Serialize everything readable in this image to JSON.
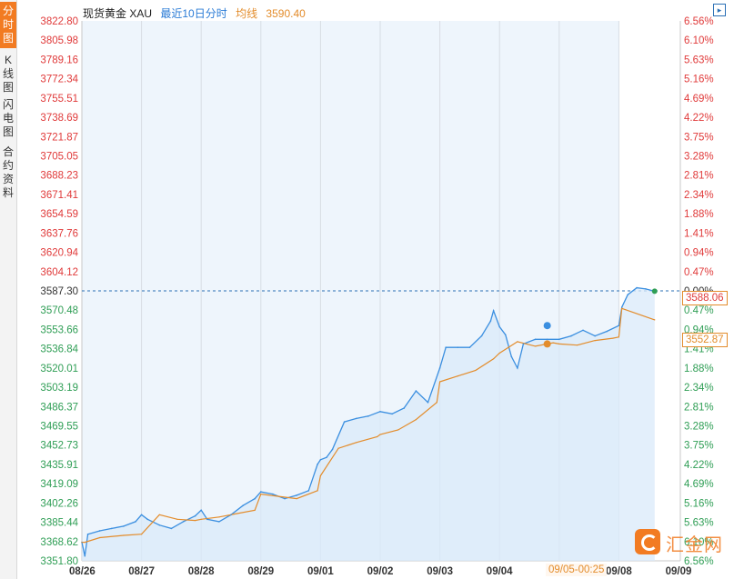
{
  "sidebar": {
    "tabs": [
      {
        "label": "分时图",
        "active": true
      },
      {
        "label": "K线图",
        "active": false
      },
      {
        "label": "闪电图",
        "active": false
      },
      {
        "label": "合约资料",
        "active": false
      }
    ]
  },
  "header": {
    "name": "现货黄金 XAU",
    "period": "最近10日分时",
    "avg_label": "均线",
    "avg_value": "3590.40"
  },
  "badges": {
    "current_price": "3588.06",
    "avg_price": "3552.87",
    "crosshair_time": "09/05-00:25"
  },
  "logo": {
    "text": "汇金网"
  },
  "colors": {
    "price": "#3b8fe0",
    "avg": "#e38c2b",
    "up": "#e03a3a",
    "down": "#2f9e55",
    "fill": "#d9e9fa"
  },
  "chart_data": {
    "type": "line",
    "title": "现货黄金 XAU",
    "xlabel": "",
    "ylabel": "",
    "ylim": [
      3351.8,
      3822.8
    ],
    "prev_close": 3587.3,
    "y_ticks": [
      "3822.80",
      "3805.98",
      "3789.16",
      "3772.34",
      "3755.51",
      "3738.69",
      "3721.87",
      "3705.05",
      "3688.23",
      "3671.41",
      "3654.59",
      "3637.76",
      "3620.94",
      "3604.12",
      "3587.30",
      "3570.48",
      "3553.66",
      "3536.84",
      "3520.01",
      "3503.19",
      "3486.37",
      "3469.55",
      "3452.73",
      "3435.91",
      "3419.09",
      "3402.26",
      "3385.44",
      "3368.62",
      "3351.80"
    ],
    "pct_ticks": [
      "6.56%",
      "6.10%",
      "5.63%",
      "5.16%",
      "4.69%",
      "4.22%",
      "3.75%",
      "3.28%",
      "2.81%",
      "2.34%",
      "1.88%",
      "1.41%",
      "0.94%",
      "0.47%",
      "0.00%",
      "0.47%",
      "0.94%",
      "1.41%",
      "1.88%",
      "2.34%",
      "2.81%",
      "3.28%",
      "3.75%",
      "4.22%",
      "4.69%",
      "5.16%",
      "5.63%",
      "6.10%",
      "6.56%"
    ],
    "x_labels": [
      "08/26",
      "08/27",
      "08/28",
      "08/29",
      "09/01",
      "09/02",
      "09/03",
      "09/04",
      "09/05",
      "09/08",
      "09/09"
    ],
    "grid": true,
    "series": [
      {
        "name": "现货黄金 XAU",
        "x": [
          0,
          0.05,
          0.1,
          0.3,
          0.5,
          0.7,
          0.9,
          1.0,
          1.1,
          1.3,
          1.5,
          1.7,
          1.9,
          2.0,
          2.1,
          2.3,
          2.5,
          2.7,
          2.9,
          3.0,
          3.2,
          3.4,
          3.6,
          3.8,
          3.95,
          4.0,
          4.1,
          4.2,
          4.4,
          4.6,
          4.8,
          5.0,
          5.2,
          5.4,
          5.6,
          5.8,
          6.0,
          6.1,
          6.3,
          6.5,
          6.7,
          6.85,
          6.9,
          7.0,
          7.1,
          7.2,
          7.3,
          7.4,
          7.6,
          7.8,
          8.0,
          8.2,
          8.4,
          8.6,
          8.8,
          9.0,
          9.05,
          9.15,
          9.3,
          9.45,
          9.6
        ],
        "values": [
          3368,
          3356,
          3375,
          3378,
          3380,
          3382,
          3386,
          3392,
          3388,
          3383,
          3380,
          3386,
          3391,
          3396,
          3388,
          3386,
          3392,
          3400,
          3406,
          3412,
          3410,
          3406,
          3409,
          3413,
          3436,
          3440,
          3442,
          3449,
          3473,
          3476,
          3478,
          3482,
          3480,
          3485,
          3500,
          3490,
          3520,
          3538,
          3538,
          3538,
          3548,
          3561,
          3570,
          3556,
          3549,
          3530,
          3520,
          3541,
          3545,
          3545,
          3545,
          3548,
          3553,
          3548,
          3552,
          3557,
          3573,
          3584,
          3590,
          3589,
          3587
        ]
      },
      {
        "name": "均线",
        "x": [
          0,
          0.05,
          0.3,
          0.7,
          1.0,
          1.3,
          1.6,
          1.9,
          2.0,
          2.3,
          2.6,
          2.9,
          3.0,
          3.3,
          3.6,
          3.95,
          4.0,
          4.3,
          4.6,
          4.95,
          5.0,
          5.3,
          5.6,
          5.95,
          6.0,
          6.3,
          6.6,
          6.9,
          7.0,
          7.3,
          7.6,
          7.9,
          8.0,
          8.3,
          8.6,
          8.9,
          9.0,
          9.05,
          9.6
        ],
        "values": [
          3368,
          3368,
          3372,
          3374,
          3375,
          3392,
          3388,
          3387,
          3388,
          3390,
          3393,
          3396,
          3410,
          3408,
          3406,
          3413,
          3426,
          3450,
          3455,
          3460,
          3462,
          3466,
          3475,
          3490,
          3508,
          3513,
          3518,
          3528,
          3533,
          3543,
          3539,
          3542,
          3541,
          3540,
          3544,
          3546,
          3547,
          3572,
          3562
        ]
      }
    ]
  }
}
